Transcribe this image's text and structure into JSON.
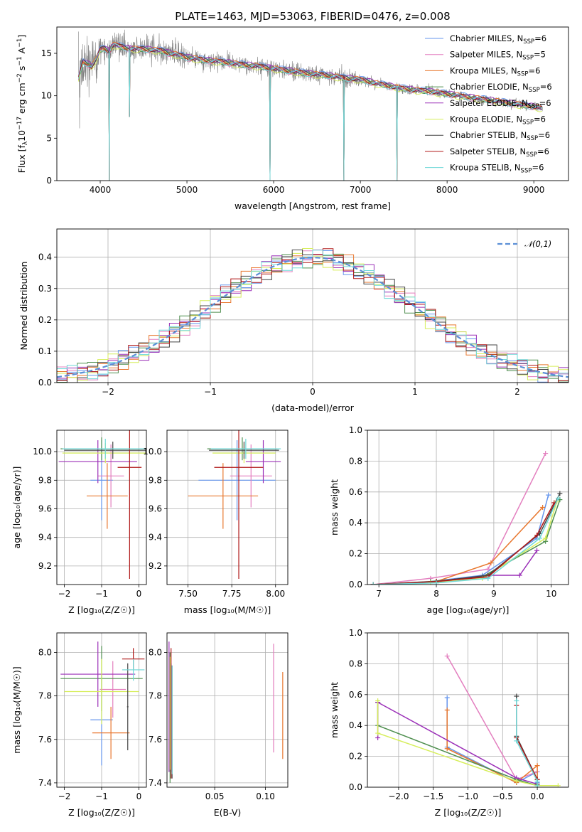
{
  "figure_title": "PLATE=1463, MJD=53063, FIBERID=0476, z=0.008",
  "colors": {
    "grid": "#b0b0b0",
    "Chabrier MILES": "#6495ed",
    "Salpeter MILES": "#e37fbf",
    "Kroupa MILES": "#e8772e",
    "Chabrier ELODIE": "#4f8f4f",
    "Salpeter ELODIE": "#9b30b8",
    "Kroupa ELODIE": "#d6ee5a",
    "Chabrier STELIB": "#444444",
    "Salpeter STELIB": "#b01818",
    "Kroupa STELIB": "#6fd8d8",
    "data": "#808080",
    "gauss": "#5b8fd6"
  },
  "models": [
    {
      "name": "Chabrier MILES",
      "label_pre": "Chabrier MILES, N",
      "label_sub": "SSP",
      "label_post": "=6"
    },
    {
      "name": "Salpeter MILES",
      "label_pre": "Salpeter MILES, N",
      "label_sub": "SSP",
      "label_post": "=5"
    },
    {
      "name": "Kroupa MILES",
      "label_pre": "Kroupa MILES, N",
      "label_sub": "SSP",
      "label_post": "=6"
    },
    {
      "name": "Chabrier ELODIE",
      "label_pre": "Chabrier ELODIE, N",
      "label_sub": "SSP",
      "label_post": "=6"
    },
    {
      "name": "Salpeter ELODIE",
      "label_pre": "Salpeter ELODIE, N",
      "label_sub": "SSP",
      "label_post": "=6"
    },
    {
      "name": "Kroupa ELODIE",
      "label_pre": "Kroupa ELODIE, N",
      "label_sub": "SSP",
      "label_post": "=6"
    },
    {
      "name": "Chabrier STELIB",
      "label_pre": "Chabrier STELIB, N",
      "label_sub": "SSP",
      "label_post": "=6"
    },
    {
      "name": "Salpeter STELIB",
      "label_pre": "Salpeter STELIB, N",
      "label_sub": "SSP",
      "label_post": "=6"
    },
    {
      "name": "Kroupa STELIB",
      "label_pre": "Kroupa STELIB, N",
      "label_sub": "SSP",
      "label_post": "=6"
    }
  ],
  "chart_data": [
    {
      "id": "spectrum",
      "type": "line",
      "title": "PLATE=1463, MJD=53063, FIBERID=0476, z=0.008",
      "xlabel": "wavelength [Angstrom, rest frame]",
      "ylabel_pre": "Flux [f",
      "ylabel_sub": "λ",
      "ylabel_mid": "10",
      "ylabel_sup1": "−17",
      "ylabel_post": " erg cm",
      "ylabel_sup2": "−2",
      "ylabel_post2": " s",
      "ylabel_sup3": "−1",
      "ylabel_post3": " A",
      "ylabel_sup4": "−1",
      "ylabel_end": "]",
      "xlim": [
        3500,
        9400
      ],
      "ylim": [
        0,
        18.1
      ],
      "xticks": [
        4000,
        5000,
        6000,
        7000,
        8000,
        9000
      ],
      "yticks": [
        0,
        5,
        10,
        15
      ],
      "x": [
        3750,
        3800,
        3850,
        3900,
        3950,
        4000,
        4050,
        4100,
        4150,
        4200,
        4300,
        4400,
        4500,
        4600,
        4700,
        4800,
        4900,
        5000,
        5200,
        5400,
        5600,
        5800,
        6000,
        6200,
        6400,
        6600,
        6800,
        7000,
        7200,
        7400,
        7600,
        7800,
        8000,
        8200,
        8400,
        8600,
        8800,
        9000,
        9100
      ],
      "model_flux": [
        12.0,
        14.0,
        13.8,
        13.4,
        14.2,
        15.4,
        15.6,
        15.2,
        16.0,
        15.9,
        15.6,
        15.5,
        15.5,
        15.4,
        15.3,
        15.0,
        14.8,
        14.5,
        14.2,
        14.0,
        13.7,
        13.5,
        13.2,
        12.9,
        12.6,
        12.4,
        12.1,
        11.9,
        11.4,
        11.0,
        10.7,
        10.5,
        10.2,
        9.9,
        9.6,
        9.3,
        9.0,
        8.7,
        8.5
      ],
      "absorption_lines": [
        {
          "x": 4102,
          "y": 0
        },
        {
          "x": 4340,
          "y": 7.5
        },
        {
          "x": 5960,
          "y": 0
        },
        {
          "x": 6810,
          "y": 0
        },
        {
          "x": 7420,
          "y": 0
        }
      ],
      "legend": "top-right",
      "grid": false
    },
    {
      "id": "residuals",
      "type": "histogram",
      "xlabel": "(data-model)/error",
      "ylabel": "Normed distribution",
      "xlim": [
        -2.5,
        2.5
      ],
      "ylim": [
        0,
        0.49
      ],
      "xticks": [
        -2,
        -1,
        0,
        1,
        2
      ],
      "yticks": [
        0.0,
        0.1,
        0.2,
        0.3,
        0.4
      ],
      "bin_width": 0.1,
      "reference": {
        "name": "𝒩(0,1)",
        "mean": 0,
        "sigma": 1
      },
      "legend": "top-right",
      "grid": true
    },
    {
      "id": "age_vs_Z",
      "type": "scatter",
      "xlabel": "Z [log₁₀(Z/Z☉)]",
      "ylabel": "age  [log₁₀(age/yr)]",
      "xlim": [
        -2.2,
        0.2
      ],
      "ylim": [
        9.07,
        10.15
      ],
      "xticks": [
        -2,
        -1,
        0
      ],
      "yticks": [
        9.2,
        9.4,
        9.6,
        9.8,
        10.0
      ],
      "points": [
        {
          "model": "Chabrier MILES",
          "x": -1.0,
          "xerr": 0.3,
          "y": 9.8,
          "yerr": 0.28
        },
        {
          "model": "Salpeter MILES",
          "x": -0.75,
          "xerr": 0.35,
          "y": 9.83,
          "yerr": 0.22
        },
        {
          "model": "Kroupa MILES",
          "x": -0.85,
          "xerr": 0.55,
          "y": 9.69,
          "yerr": 0.23
        },
        {
          "model": "Chabrier ELODIE",
          "x": -1.0,
          "xerr": 1.1,
          "y": 10.02,
          "yerr": 0.08
        },
        {
          "model": "Salpeter ELODIE",
          "x": -1.1,
          "xerr": 1.05,
          "y": 9.93,
          "yerr": 0.15
        },
        {
          "model": "Kroupa ELODIE",
          "x": -0.9,
          "xerr": 1.15,
          "y": 9.99,
          "yerr": 0.07
        },
        {
          "model": "Chabrier STELIB",
          "x": -0.7,
          "xerr": 1.3,
          "y": 10.01,
          "yerr": 0.06
        },
        {
          "model": "Salpeter STELIB",
          "x": -0.25,
          "xerr": 0.32,
          "y": 9.89,
          "yerr": 0.78
        },
        {
          "model": "Kroupa STELIB",
          "x": -0.9,
          "xerr": 1.15,
          "y": 10.02,
          "yerr": 0.07
        }
      ]
    },
    {
      "id": "age_vs_mass",
      "type": "scatter",
      "xlabel": "mass [log₁₀(M/M☉)]",
      "ylabel": "",
      "xlim": [
        7.38,
        8.07
      ],
      "ylim": [
        9.07,
        10.15
      ],
      "xticks": [
        7.5,
        7.75,
        8.0
      ],
      "xticklabels": [
        "7.50",
        "7.75",
        "8.00"
      ],
      "yticks": [
        9.2,
        9.4,
        9.6,
        9.8,
        10.0
      ],
      "points": [
        {
          "model": "Chabrier MILES",
          "x": 7.78,
          "xerr": 0.22,
          "y": 9.8,
          "yerr": 0.28
        },
        {
          "model": "Salpeter MILES",
          "x": 7.86,
          "xerr": 0.12,
          "y": 9.83,
          "yerr": 0.22
        },
        {
          "model": "Kroupa MILES",
          "x": 7.7,
          "xerr": 0.2,
          "y": 9.69,
          "yerr": 0.23
        },
        {
          "model": "Chabrier ELODIE",
          "x": 7.81,
          "xerr": 0.2,
          "y": 10.02,
          "yerr": 0.08
        },
        {
          "model": "Salpeter ELODIE",
          "x": 7.93,
          "xerr": 0.1,
          "y": 9.93,
          "yerr": 0.15
        },
        {
          "model": "Kroupa ELODIE",
          "x": 7.82,
          "xerr": 0.18,
          "y": 9.99,
          "yerr": 0.07
        },
        {
          "model": "Chabrier STELIB",
          "x": 7.82,
          "xerr": 0.2,
          "y": 10.01,
          "yerr": 0.06
        },
        {
          "model": "Salpeter STELIB",
          "x": 7.79,
          "xerr": 0.14,
          "y": 9.89,
          "yerr": 0.78
        },
        {
          "model": "Kroupa STELIB",
          "x": 7.83,
          "xerr": 0.2,
          "y": 10.02,
          "yerr": 0.07
        }
      ]
    },
    {
      "id": "weight_vs_age",
      "type": "line",
      "xlabel": "age  [log₁₀(age/yr)]",
      "ylabel": "mass weight",
      "xlim": [
        6.8,
        10.3
      ],
      "ylim": [
        0,
        1.0
      ],
      "xticks": [
        7,
        8,
        9,
        10
      ],
      "yticks": [
        0.0,
        0.2,
        0.4,
        0.6,
        0.8,
        1.0
      ],
      "series": [
        {
          "model": "Chabrier MILES",
          "x": [
            6.9,
            7.9,
            8.8,
            9.75,
            9.95
          ],
          "y": [
            0.0,
            0.02,
            0.06,
            0.3,
            0.58
          ]
        },
        {
          "model": "Salpeter MILES",
          "x": [
            6.9,
            7.9,
            8.9,
            9.9
          ],
          "y": [
            0.0,
            0.04,
            0.1,
            0.85
          ]
        },
        {
          "model": "Kroupa MILES",
          "x": [
            6.9,
            8.0,
            8.95,
            9.85
          ],
          "y": [
            0.0,
            0.02,
            0.14,
            0.5
          ]
        },
        {
          "model": "Chabrier ELODIE",
          "x": [
            6.9,
            7.9,
            8.8,
            9.9,
            10.15
          ],
          "y": [
            0.0,
            0.02,
            0.05,
            0.28,
            0.55
          ]
        },
        {
          "model": "Salpeter ELODIE",
          "x": [
            6.9,
            8.0,
            8.9,
            9.45,
            9.75
          ],
          "y": [
            0.0,
            0.02,
            0.06,
            0.06,
            0.22
          ]
        },
        {
          "model": "Kroupa ELODIE",
          "x": [
            6.9,
            7.9,
            8.8,
            9.9,
            10.1
          ],
          "y": [
            0.0,
            0.01,
            0.04,
            0.3,
            0.54
          ]
        },
        {
          "model": "Chabrier STELIB",
          "x": [
            6.9,
            8.0,
            8.9,
            9.8,
            10.15
          ],
          "y": [
            0.0,
            0.02,
            0.06,
            0.33,
            0.59
          ]
        },
        {
          "model": "Salpeter STELIB",
          "x": [
            6.9,
            8.0,
            8.9,
            9.75,
            10.05
          ],
          "y": [
            0.0,
            0.02,
            0.05,
            0.32,
            0.53
          ]
        },
        {
          "model": "Kroupa STELIB",
          "x": [
            6.9,
            8.0,
            8.9,
            9.8,
            10.12
          ],
          "y": [
            0.0,
            0.01,
            0.04,
            0.3,
            0.56
          ]
        }
      ]
    },
    {
      "id": "mass_vs_Z",
      "type": "scatter",
      "xlabel": "Z [log₁₀(Z/Z☉)]",
      "ylabel": "mass [log₁₀(M/M☉)]",
      "xlim": [
        -2.2,
        0.2
      ],
      "ylim": [
        7.38,
        8.09
      ],
      "xticks": [
        -2,
        -1,
        0
      ],
      "yticks": [
        7.4,
        7.6,
        7.8,
        8.0
      ],
      "points": [
        {
          "model": "Chabrier MILES",
          "x": -1.0,
          "xerr": 0.3,
          "y": 7.69,
          "yerr": 0.21
        },
        {
          "model": "Salpeter MILES",
          "x": -0.7,
          "xerr": 0.35,
          "y": 7.83,
          "yerr": 0.13
        },
        {
          "model": "Kroupa MILES",
          "x": -0.75,
          "xerr": 0.5,
          "y": 7.63,
          "yerr": 0.12
        },
        {
          "model": "Chabrier ELODIE",
          "x": -1.0,
          "xerr": 1.1,
          "y": 7.88,
          "yerr": 0.15
        },
        {
          "model": "Salpeter ELODIE",
          "x": -1.1,
          "xerr": 1.0,
          "y": 7.9,
          "yerr": 0.15
        },
        {
          "model": "Kroupa ELODIE",
          "x": -1.0,
          "xerr": 1.0,
          "y": 7.82,
          "yerr": 0.15
        },
        {
          "model": "Chabrier STELIB",
          "x": -0.3,
          "xerr": 0.02,
          "y": 7.75,
          "yerr": 0.2
        },
        {
          "model": "Salpeter STELIB",
          "x": -0.15,
          "xerr": 0.3,
          "y": 7.97,
          "yerr": 0.05
        },
        {
          "model": "Kroupa STELIB",
          "x": -0.15,
          "xerr": 0.3,
          "y": 7.92,
          "yerr": 0.05
        }
      ]
    },
    {
      "id": "mass_vs_EBV",
      "type": "scatter",
      "xlabel": "E(B-V)",
      "ylabel": "",
      "xlim": [
        0.003,
        0.122
      ],
      "ylim": [
        7.38,
        8.09
      ],
      "xticks": [
        0.05,
        0.1
      ],
      "xticklabels": [
        "0.05",
        "0.10"
      ],
      "yticks": [
        7.4,
        7.6,
        7.8,
        8.0
      ],
      "points": [
        {
          "model": "Chabrier MILES",
          "x": 0.007,
          "y": 7.7,
          "yerr": 0.25
        },
        {
          "model": "Salpeter MILES",
          "x": 0.108,
          "y": 7.79,
          "yerr": 0.25
        },
        {
          "model": "Kroupa MILES",
          "x": 0.117,
          "y": 7.71,
          "yerr": 0.2
        },
        {
          "model": "Chabrier ELODIE",
          "x": 0.006,
          "y": 7.7,
          "yerr": 0.3
        },
        {
          "model": "Salpeter ELODIE",
          "x": 0.005,
          "y": 7.75,
          "yerr": 0.3
        },
        {
          "model": "Kroupa ELODIE",
          "x": 0.006,
          "y": 7.72,
          "yerr": 0.26
        },
        {
          "model": "Chabrier STELIB",
          "x": 0.008,
          "y": 7.68,
          "yerr": 0.26
        },
        {
          "model": "Salpeter STELIB",
          "x": 0.007,
          "y": 7.72,
          "yerr": 0.3
        },
        {
          "model": "Kroupa STELIB",
          "x": 0.008,
          "y": 7.69,
          "yerr": 0.25
        }
      ]
    },
    {
      "id": "weight_vs_Z",
      "type": "line",
      "xlabel": "Z [log₁₀(Z/Z☉)]",
      "ylabel": "mass weight",
      "xlim": [
        -2.45,
        0.45
      ],
      "ylim": [
        0,
        1.0
      ],
      "xticks": [
        -2.0,
        -1.5,
        -1.0,
        -0.5,
        0.0
      ],
      "xticklabels": [
        "−2.0",
        "−1.5",
        "−1.0",
        "−0.5",
        "0.0"
      ],
      "yticks": [
        0.0,
        0.2,
        0.4,
        0.6,
        0.8,
        1.0
      ],
      "series": [
        {
          "model": "Chabrier MILES",
          "x": [
            -1.3,
            -1.3,
            -0.3,
            0.0,
            0.0
          ],
          "y": [
            0.58,
            0.26,
            0.03,
            0.1,
            0.03
          ]
        },
        {
          "model": "Salpeter MILES",
          "x": [
            -1.3,
            -0.3,
            0.0
          ],
          "y": [
            0.85,
            0.05,
            0.1
          ]
        },
        {
          "model": "Kroupa MILES",
          "x": [
            -1.3,
            -1.3,
            -0.3,
            0.0,
            0.0
          ],
          "y": [
            0.5,
            0.25,
            0.03,
            0.14,
            0.02
          ]
        },
        {
          "model": "Chabrier ELODIE",
          "x": [
            -2.3,
            -2.3,
            -0.3,
            0.0
          ],
          "y": [
            0.55,
            0.4,
            0.05,
            0.01
          ]
        },
        {
          "model": "Salpeter ELODIE",
          "x": [
            -2.3,
            -2.3,
            -0.3,
            0.0
          ],
          "y": [
            0.32,
            0.55,
            0.06,
            0.02
          ]
        },
        {
          "model": "Kroupa ELODIE",
          "x": [
            -2.3,
            -2.3,
            -0.3,
            0.0,
            0.3
          ],
          "y": [
            0.56,
            0.35,
            0.04,
            0.01,
            0.01
          ]
        },
        {
          "model": "Chabrier STELIB",
          "x": [
            -0.3,
            -0.3,
            0.0,
            0.0
          ],
          "y": [
            0.59,
            0.33,
            0.05,
            0.02
          ]
        },
        {
          "model": "Salpeter STELIB",
          "x": [
            -0.3,
            -0.3,
            0.0
          ],
          "y": [
            0.53,
            0.32,
            0.05
          ]
        },
        {
          "model": "Kroupa STELIB",
          "x": [
            -0.3,
            -0.3,
            0.0,
            0.0
          ],
          "y": [
            0.56,
            0.3,
            0.04,
            0.01
          ]
        }
      ]
    }
  ]
}
